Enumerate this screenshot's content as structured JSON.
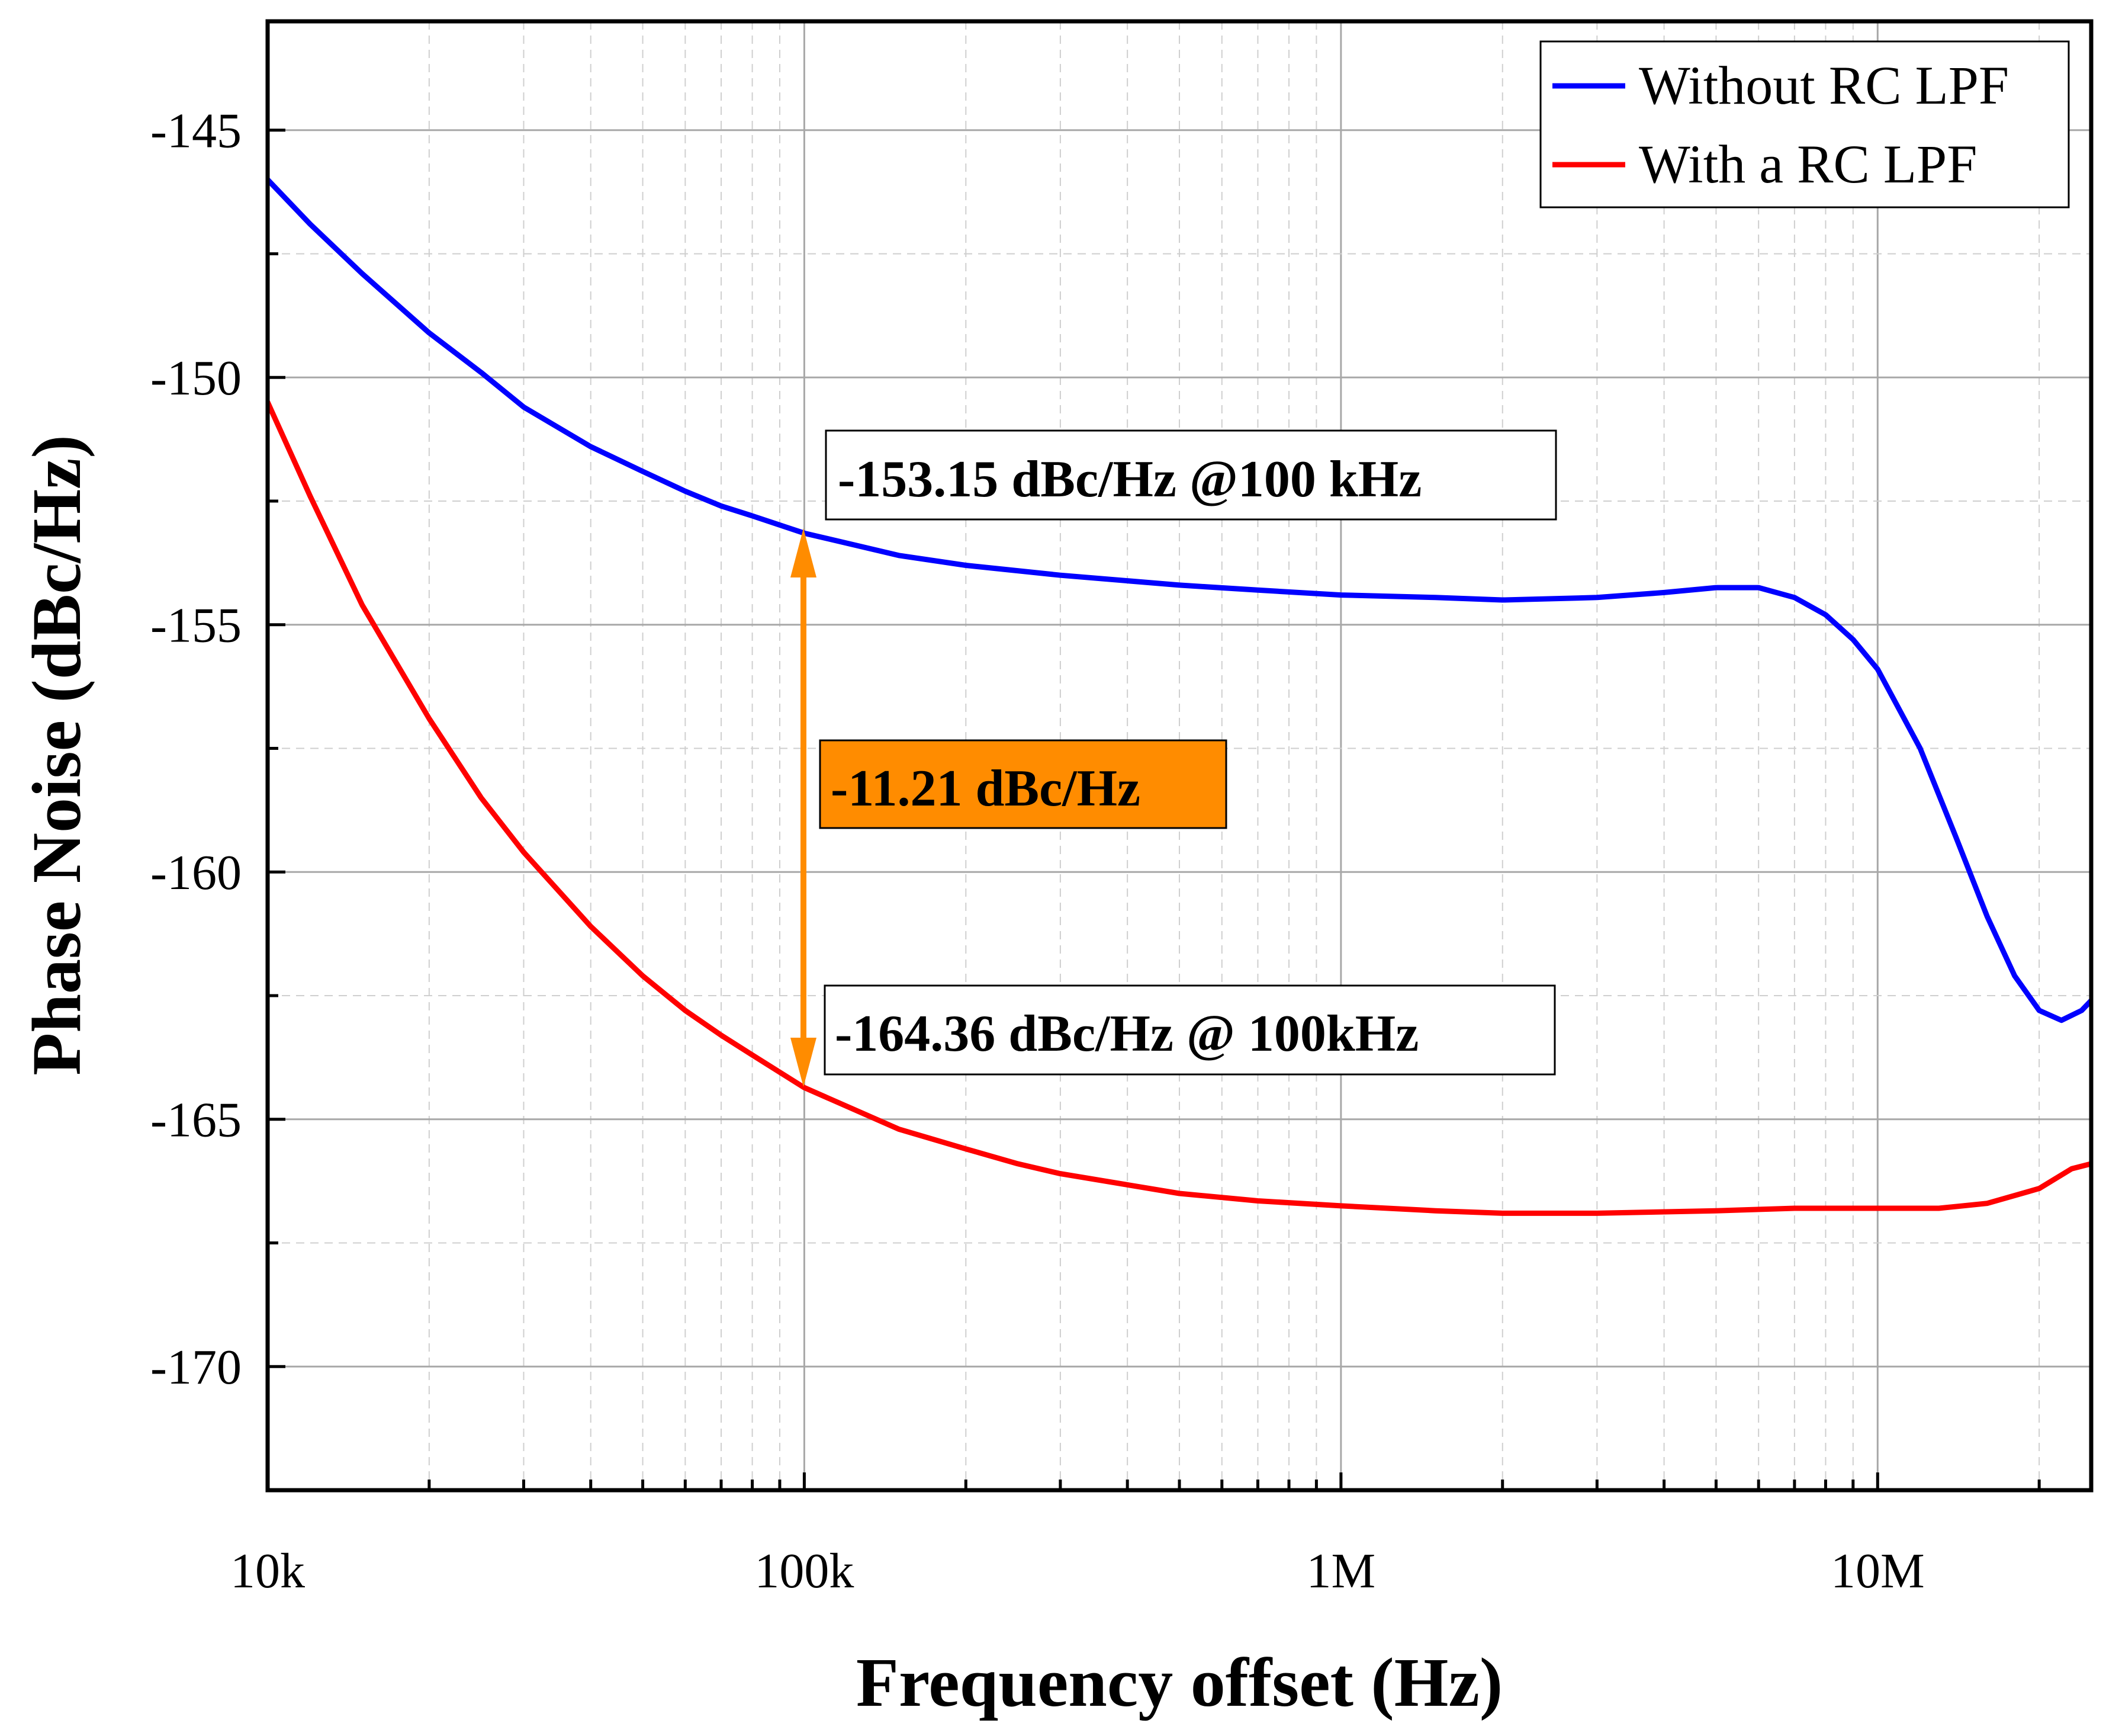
{
  "chart_data": {
    "type": "line",
    "xscale": "log",
    "xlabel": "Frequency offset (Hz)",
    "ylabel": "Phase Noise (dBc/Hz)",
    "xlim": [
      10000,
      25000000
    ],
    "ylim": [
      -172.5,
      -142.8
    ],
    "x_ticks": [
      {
        "value": 10000,
        "label": "10k"
      },
      {
        "value": 100000,
        "label": "100k"
      },
      {
        "value": 1000000,
        "label": "1M"
      },
      {
        "value": 10000000,
        "label": "10M"
      }
    ],
    "y_ticks": [
      {
        "value": -145,
        "label": "-145"
      },
      {
        "value": -150,
        "label": "-150"
      },
      {
        "value": -155,
        "label": "-155"
      },
      {
        "value": -160,
        "label": "-160"
      },
      {
        "value": -165,
        "label": "-165"
      },
      {
        "value": -170,
        "label": "-170"
      }
    ],
    "grid": true,
    "legend_position": "top-right",
    "series": [
      {
        "name": "Without RC LPF",
        "color": "#0000ff",
        "points": [
          [
            10000,
            -146.0
          ],
          [
            12000,
            -146.9
          ],
          [
            15000,
            -147.9
          ],
          [
            20000,
            -149.1
          ],
          [
            25000,
            -149.9
          ],
          [
            30000,
            -150.6
          ],
          [
            40000,
            -151.4
          ],
          [
            50000,
            -151.9
          ],
          [
            60000,
            -152.3
          ],
          [
            70000,
            -152.6
          ],
          [
            80000,
            -152.8
          ],
          [
            100000,
            -153.15
          ],
          [
            150000,
            -153.6
          ],
          [
            200000,
            -153.8
          ],
          [
            300000,
            -154.0
          ],
          [
            500000,
            -154.2
          ],
          [
            700000,
            -154.3
          ],
          [
            1000000,
            -154.4
          ],
          [
            1500000,
            -154.45
          ],
          [
            2000000,
            -154.5
          ],
          [
            3000000,
            -154.45
          ],
          [
            4000000,
            -154.35
          ],
          [
            5000000,
            -154.25
          ],
          [
            6000000,
            -154.25
          ],
          [
            7000000,
            -154.45
          ],
          [
            8000000,
            -154.8
          ],
          [
            9000000,
            -155.3
          ],
          [
            10000000,
            -155.9
          ],
          [
            12000000,
            -157.5
          ],
          [
            14000000,
            -159.3
          ],
          [
            16000000,
            -160.9
          ],
          [
            18000000,
            -162.1
          ],
          [
            20000000,
            -162.8
          ],
          [
            22000000,
            -163.0
          ],
          [
            24000000,
            -162.8
          ],
          [
            25000000,
            -162.6
          ]
        ]
      },
      {
        "name": "With a RC LPF",
        "color": "#ff0000",
        "points": [
          [
            10000,
            -150.5
          ],
          [
            12000,
            -152.4
          ],
          [
            15000,
            -154.6
          ],
          [
            20000,
            -156.9
          ],
          [
            25000,
            -158.5
          ],
          [
            30000,
            -159.6
          ],
          [
            40000,
            -161.1
          ],
          [
            50000,
            -162.1
          ],
          [
            60000,
            -162.8
          ],
          [
            70000,
            -163.3
          ],
          [
            80000,
            -163.7
          ],
          [
            100000,
            -164.36
          ],
          [
            150000,
            -165.2
          ],
          [
            200000,
            -165.6
          ],
          [
            250000,
            -165.9
          ],
          [
            300000,
            -166.1
          ],
          [
            500000,
            -166.5
          ],
          [
            700000,
            -166.65
          ],
          [
            1000000,
            -166.75
          ],
          [
            1500000,
            -166.85
          ],
          [
            2000000,
            -166.9
          ],
          [
            3000000,
            -166.9
          ],
          [
            5000000,
            -166.85
          ],
          [
            7000000,
            -166.8
          ],
          [
            10000000,
            -166.8
          ],
          [
            13000000,
            -166.8
          ],
          [
            16000000,
            -166.7
          ],
          [
            20000000,
            -166.4
          ],
          [
            23000000,
            -166.0
          ],
          [
            25000000,
            -165.9
          ]
        ]
      }
    ],
    "annotations": [
      {
        "id": "upper",
        "text": "-153.15 dBc/Hz @100 kHz",
        "at_x": 100000,
        "at_y": -153.15
      },
      {
        "id": "lower",
        "text": "-164.36 dBc/Hz @ 100kHz",
        "at_x": 100000,
        "at_y": -164.36
      },
      {
        "id": "delta",
        "text": "-11.21 dBc/Hz",
        "color": "#ff8c00"
      }
    ]
  }
}
